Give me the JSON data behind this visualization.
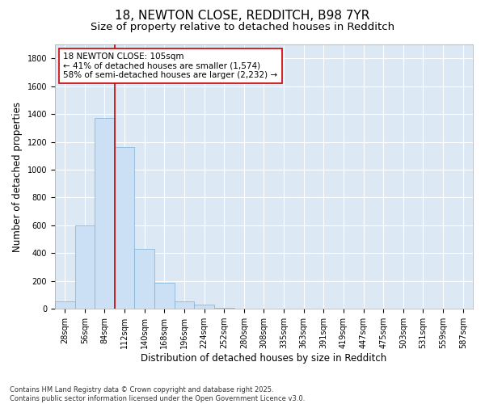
{
  "title1": "18, NEWTON CLOSE, REDDITCH, B98 7YR",
  "title2": "Size of property relative to detached houses in Redditch",
  "xlabel": "Distribution of detached houses by size in Redditch",
  "ylabel": "Number of detached properties",
  "bar_color": "#cce0f5",
  "bar_edge_color": "#7db0d4",
  "background_color": "#dde8f5",
  "grid_color": "#ffffff",
  "bins": [
    "28sqm",
    "56sqm",
    "84sqm",
    "112sqm",
    "140sqm",
    "168sqm",
    "196sqm",
    "224sqm",
    "252sqm",
    "280sqm",
    "308sqm",
    "335sqm",
    "363sqm",
    "391sqm",
    "419sqm",
    "447sqm",
    "475sqm",
    "503sqm",
    "531sqm",
    "559sqm",
    "587sqm"
  ],
  "values": [
    55,
    600,
    1370,
    1160,
    430,
    185,
    55,
    30,
    10,
    0,
    0,
    0,
    0,
    0,
    0,
    0,
    0,
    0,
    0,
    0,
    0
  ],
  "ylim": [
    0,
    1900
  ],
  "yticks": [
    0,
    200,
    400,
    600,
    800,
    1000,
    1200,
    1400,
    1600,
    1800
  ],
  "vline_color": "#cc0000",
  "vline_pos": 2.5,
  "annotation_text": "18 NEWTON CLOSE: 105sqm\n← 41% of detached houses are smaller (1,574)\n58% of semi-detached houses are larger (2,232) →",
  "annotation_box_color": "#ffffff",
  "annotation_box_edge": "#cc0000",
  "footnote": "Contains HM Land Registry data © Crown copyright and database right 2025.\nContains public sector information licensed under the Open Government Licence v3.0.",
  "title_fontsize": 11,
  "subtitle_fontsize": 9.5,
  "axis_label_fontsize": 8.5,
  "tick_fontsize": 7,
  "annotation_fontsize": 7.5,
  "footnote_fontsize": 6
}
